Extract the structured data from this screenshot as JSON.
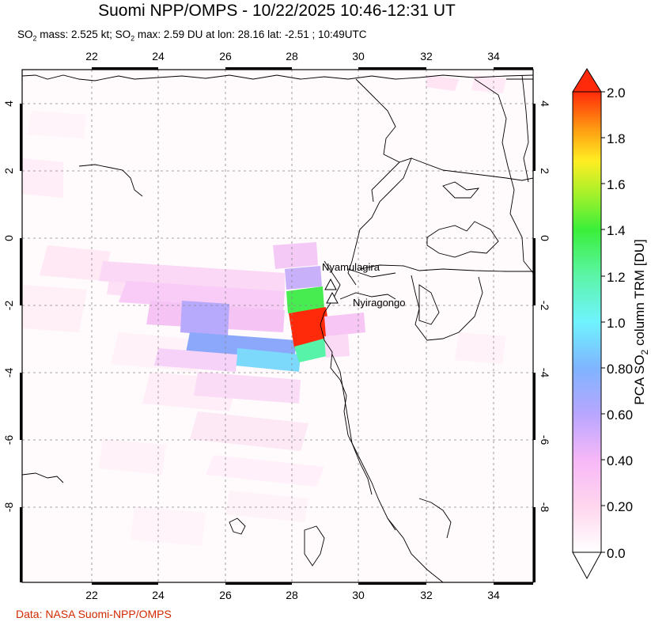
{
  "header": {
    "title": "Suomi NPP/OMPS - 10/22/2025 10:46-12:31 UT",
    "subtitle_mass_prefix": "SO",
    "subtitle_mass_sub": "2",
    "subtitle_mass_text": " mass: 2.525 kt; SO",
    "subtitle_max_sub": "2",
    "subtitle_max_text": " max: 2.59 DU at lon: 28.16 lat: -2.51 ; 10:49UTC"
  },
  "map": {
    "lon_ticks": [
      "22",
      "24",
      "26",
      "28",
      "30",
      "32",
      "34"
    ],
    "lat_ticks": [
      "4",
      "2",
      "0",
      "-2",
      "-4",
      "-6",
      "-8"
    ],
    "volcanoes": [
      {
        "name": "Nyamulagira",
        "lon": 29.2,
        "lat": -1.41
      },
      {
        "name": "Nyiragongo",
        "lon": 29.25,
        "lat": -1.52
      }
    ],
    "marker_colors": {
      "volcano": "#ffffff"
    }
  },
  "colorbar": {
    "ticks": [
      "2.0",
      "1.8",
      "1.6",
      "1.4",
      "1.2",
      "1.0",
      "0.80",
      "0.60",
      "0.40",
      "0.20",
      "0.0"
    ],
    "label_prefix": "PCA SO",
    "label_sub": "2",
    "label_suffix": " column TRM [DU]",
    "range": [
      0.0,
      2.0
    ]
  },
  "footer": {
    "credit": "Data: NASA Suomi-NPP/OMPS",
    "credit_color": "#d22a00"
  }
}
